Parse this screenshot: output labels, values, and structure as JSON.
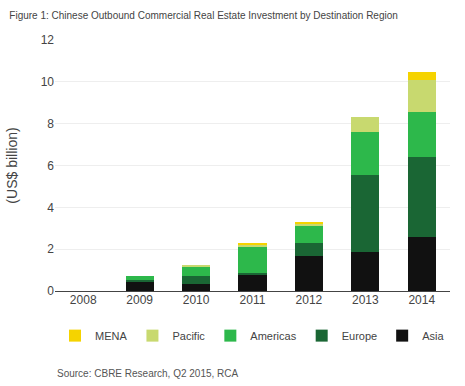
{
  "chart_data": {
    "type": "bar",
    "stacked": true,
    "title": "Figure 1: Chinese Outbound Commercial Real Estate Investment by Destination Region",
    "y_label": "(US$ billion)",
    "annotations": [
      "Source: CBRE Research, Q2 2015, RCA"
    ],
    "categories": [
      "2008",
      "2009",
      "2010",
      "2011",
      "2012",
      "2013",
      "2014"
    ],
    "series": [
      {
        "name": "Asia",
        "color": "#111111",
        "values": [
          0.0,
          0.45,
          0.35,
          0.75,
          1.65,
          1.85,
          2.6
        ]
      },
      {
        "name": "Europe",
        "color": "#1a6634",
        "values": [
          0.0,
          0.1,
          0.35,
          0.1,
          0.65,
          3.7,
          3.8
        ]
      },
      {
        "name": "Americas",
        "color": "#2db84b",
        "values": [
          0.0,
          0.15,
          0.45,
          1.3,
          0.85,
          2.05,
          2.15
        ]
      },
      {
        "name": "Pacific",
        "color": "#c8d96f",
        "values": [
          0.0,
          0.0,
          0.05,
          0.08,
          0.08,
          0.7,
          1.55
        ]
      },
      {
        "name": "MENA",
        "color": "#f5d300",
        "values": [
          0.0,
          0.0,
          0.0,
          0.08,
          0.08,
          0.0,
          0.35
        ]
      }
    ],
    "ylim": [
      0,
      12
    ],
    "yticks": [
      0,
      2,
      4,
      6,
      8,
      10,
      12
    ],
    "grid": true,
    "legend": "bottom"
  }
}
